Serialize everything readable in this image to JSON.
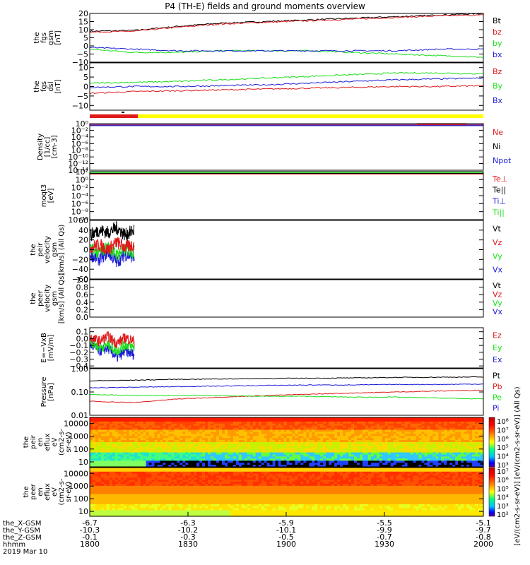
{
  "title": "P4 (TH-E) fields and ground moments overview",
  "colors": {
    "black": "#000000",
    "red": "#e0191b",
    "green": "#18e018",
    "blue": "#1b1bd8",
    "yellow": "#ffff00"
  },
  "panels": [
    {
      "id": "fgs-gsm",
      "ylabel": [
        "the",
        "fgs",
        "gsm",
        "[nT]"
      ],
      "yticks": [
        "20",
        "15",
        "10",
        "5",
        "0",
        "−5",
        "−10"
      ],
      "ylim": [
        -10,
        20
      ],
      "legend": [
        {
          "label": "Bt",
          "color": "#000000"
        },
        {
          "label": "bz",
          "color": "#e0191b"
        },
        {
          "label": "by",
          "color": "#18e018"
        },
        {
          "label": "bx",
          "color": "#1b1bd8"
        }
      ]
    },
    {
      "id": "fgs-dsl",
      "ylabel": [
        "the",
        "fgs",
        "dsl",
        "[nT]"
      ],
      "yticks": [
        "10",
        "5",
        "0",
        "−5",
        "−10"
      ],
      "ylim": [
        -14,
        14
      ],
      "legend": [
        {
          "label": "Bz",
          "color": "#e0191b"
        },
        {
          "label": "By",
          "color": "#18e018"
        },
        {
          "label": "Bx",
          "color": "#1b1bd8"
        }
      ]
    },
    {
      "id": "density",
      "ylabel": [
        "Density",
        "[1/cc]",
        "[cm-3]"
      ],
      "yticks": [
        "10⁰",
        "10⁻²",
        "10⁻⁴",
        "10⁻⁶",
        "10⁻⁸",
        "10⁻¹⁰",
        "10⁻¹²",
        "10⁻¹⁴"
      ],
      "legend": [
        {
          "label": "Ne",
          "color": "#e0191b"
        },
        {
          "label": "Ni",
          "color": "#000000"
        },
        {
          "label": "Npot",
          "color": "#1b1bd8"
        }
      ]
    },
    {
      "id": "temperature",
      "ylabel": [
        "moqt3",
        "[eV]"
      ],
      "yticks": [
        "10²",
        "10⁰",
        "10⁻²",
        "10⁻⁴",
        "10⁻⁶",
        "10⁻⁸",
        "10⁻¹⁰"
      ],
      "legend": [
        {
          "label": "Te⊥",
          "color": "#e0191b"
        },
        {
          "label": "Te||",
          "color": "#000000"
        },
        {
          "label": "Ti⊥",
          "color": "#1b1bd8"
        },
        {
          "label": "Ti||",
          "color": "#18e018"
        }
      ]
    },
    {
      "id": "peir-velocity",
      "ylabel": [
        "the",
        "peir",
        "velocity",
        "gsm",
        "[km/s] (All Qs)"
      ],
      "yticks": [
        "60",
        "40",
        "20",
        "0",
        "−20",
        "−40",
        "−60"
      ],
      "ylim": [
        -60,
        60
      ],
      "legend": [
        {
          "label": "Vt",
          "color": "#000000"
        },
        {
          "label": "Vz",
          "color": "#e0191b"
        },
        {
          "label": "Vy",
          "color": "#18e018"
        },
        {
          "label": "Vx",
          "color": "#1b1bd8"
        }
      ]
    },
    {
      "id": "peer-velocity",
      "ylabel": [
        "the",
        "peer",
        "velocity",
        "gsm",
        "[km/s] (All Qs)"
      ],
      "yticks": [
        "1.0",
        "0.8",
        "0.6",
        "0.4",
        "0.2",
        "0.0"
      ],
      "ylim": [
        0,
        1
      ],
      "legend": [
        {
          "label": "Vt",
          "color": "#000000"
        },
        {
          "label": "Vz",
          "color": "#e0191b"
        },
        {
          "label": "Vy",
          "color": "#18e018"
        },
        {
          "label": "Vx",
          "color": "#1b1bd8"
        }
      ]
    },
    {
      "id": "efield",
      "ylabel": [
        "E=−VxB",
        "[mV/m]"
      ],
      "yticks": [
        "0.1",
        "0.0",
        "−0.1",
        "−0.2",
        "−0.3",
        "−0.4"
      ],
      "ylim": [
        -0.45,
        0.15
      ],
      "legend": [
        {
          "label": "Ez",
          "color": "#e0191b"
        },
        {
          "label": "Ey",
          "color": "#18e018"
        },
        {
          "label": "Ex",
          "color": "#1b1bd8"
        }
      ]
    },
    {
      "id": "pressure",
      "ylabel": [
        "Pressure",
        "[nPa]"
      ],
      "yticks": [
        "1.00",
        "0.10",
        "0.01"
      ],
      "legend": [
        {
          "label": "Pt",
          "color": "#000000"
        },
        {
          "label": "Pb",
          "color": "#e0191b"
        },
        {
          "label": "Pe",
          "color": "#18e018"
        },
        {
          "label": "Pi",
          "color": "#1b1bd8"
        }
      ]
    },
    {
      "id": "peir-eflux",
      "ylabel": [
        "the",
        "peir",
        "en",
        "eflux",
        "eV",
        "(cm2-s-",
        "sr-eV)"
      ],
      "yticks": [
        "10000",
        "1000",
        "100",
        "10"
      ],
      "colorbar": [
        "10⁸",
        "10⁷",
        "10⁶",
        "10⁵",
        "10⁴",
        "10³"
      ]
    },
    {
      "id": "peer-eflux",
      "ylabel": [
        "the",
        "peer",
        "en",
        "eflux",
        "eV",
        "(cm2-s-",
        "sr-eV)"
      ],
      "yticks": [
        "10000",
        "1000",
        "100",
        "10"
      ],
      "colorbar": [
        "10⁷",
        "10⁶",
        "10⁵",
        "10⁴",
        "10³",
        "10²"
      ]
    }
  ],
  "colorbar_title": "[eV/(cm2-s-sr-eV)] [eV/(cm2-s-sr-eV)] (All Qs)",
  "axis": {
    "row_labels": [
      "the_X-GSM",
      "the_Y-GSM",
      "the_Z-GSM",
      "hhmm",
      "2019 Mar 10"
    ],
    "ticks": [
      {
        "x": "-6.7",
        "y": "-10.3",
        "z": "-0.1",
        "hhmm": "1800"
      },
      {
        "x": "-6.3",
        "y": "-10.2",
        "z": "-0.3",
        "hhmm": "1830"
      },
      {
        "x": "-5.9",
        "y": "-10.1",
        "z": "-0.5",
        "hhmm": "1900"
      },
      {
        "x": "-5.5",
        "y": "-9.9",
        "z": "-0.7",
        "hhmm": "1930"
      },
      {
        "x": "-5.1",
        "y": "-9.7",
        "z": "-0.8",
        "hhmm": "2000"
      }
    ]
  },
  "chart_data": {
    "type": "line",
    "x_range": [
      "1800",
      "2000"
    ],
    "panels": [
      {
        "id": "fgs-gsm",
        "series": [
          {
            "name": "Bt",
            "values": [
              9,
              9.5,
              12,
              14,
              15,
              16,
              17,
              18,
              19,
              20
            ]
          },
          {
            "name": "bz",
            "values": [
              8.5,
              9,
              11.5,
              13.5,
              14.5,
              15.5,
              16.5,
              17.5,
              18.5,
              19
            ]
          },
          {
            "name": "by",
            "values": [
              -2,
              -4,
              -4,
              -3,
              -3,
              -3,
              -4,
              -5,
              -6,
              -7
            ]
          },
          {
            "name": "bx",
            "values": [
              -1,
              -2,
              -3,
              -3,
              -3,
              -3,
              -3,
              -3,
              -2,
              -2
            ]
          }
        ]
      },
      {
        "id": "fgs-dsl",
        "series": [
          {
            "name": "Bz",
            "values": [
              -4,
              -3,
              -2.5,
              -2,
              -1.5,
              -1,
              -0.5,
              0,
              0,
              0.5
            ]
          },
          {
            "name": "By",
            "values": [
              2,
              2.5,
              3,
              4,
              5,
              6,
              7,
              8,
              8,
              7.5
            ]
          },
          {
            "name": "Bx",
            "values": [
              -0.5,
              0,
              0,
              0.5,
              1,
              2,
              3,
              4,
              4.5,
              5
            ]
          }
        ]
      },
      {
        "id": "peir-velocity",
        "x_extent": "1800-1815",
        "series": [
          {
            "name": "Vt",
            "values": [
              30,
              40,
              35,
              45,
              30,
              40
            ]
          },
          {
            "name": "Vz",
            "values": [
              5,
              10,
              0,
              15,
              5,
              10
            ]
          },
          {
            "name": "Vy",
            "values": [
              0,
              -5,
              5,
              -10,
              0,
              -5
            ]
          },
          {
            "name": "Vx",
            "values": [
              -10,
              -20,
              -5,
              -25,
              -10,
              -15
            ]
          }
        ]
      },
      {
        "id": "efield",
        "x_extent": "1800-1815",
        "series": [
          {
            "name": "Ez",
            "values": [
              0,
              -0.05,
              0.02,
              -0.08,
              0,
              -0.05
            ]
          },
          {
            "name": "Ey",
            "values": [
              -0.05,
              -0.15,
              -0.1,
              -0.2,
              -0.1,
              -0.15
            ]
          },
          {
            "name": "Ex",
            "values": [
              -0.1,
              -0.2,
              -0.15,
              -0.3,
              -0.2,
              -0.25
            ]
          }
        ]
      },
      {
        "id": "pressure",
        "series": [
          {
            "name": "Pt",
            "values": [
              0.3,
              0.32,
              0.35,
              0.36,
              0.38,
              0.39,
              0.4,
              0.42,
              0.43,
              0.44
            ]
          },
          {
            "name": "Pb",
            "values": [
              0.04,
              0.035,
              0.05,
              0.06,
              0.07,
              0.08,
              0.09,
              0.1,
              0.11,
              0.12
            ]
          },
          {
            "name": "Pe",
            "values": [
              0.08,
              0.07,
              0.07,
              0.07,
              0.065,
              0.065,
              0.06,
              0.06,
              0.055,
              0.05
            ]
          },
          {
            "name": "Pi",
            "values": [
              0.15,
              0.16,
              0.17,
              0.18,
              0.19,
              0.2,
              0.2,
              0.21,
              0.21,
              0.22
            ]
          }
        ]
      }
    ]
  }
}
